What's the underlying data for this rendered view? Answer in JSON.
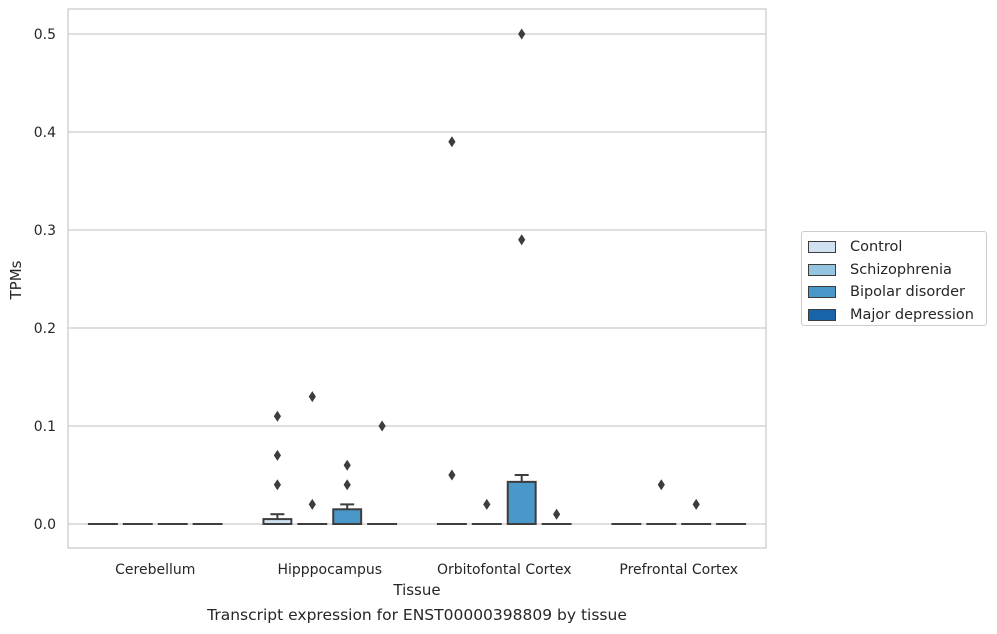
{
  "chart_data": {
    "type": "box",
    "title": "Transcript expression for ENST00000398809 by tissue",
    "xlabel": "Tissue",
    "ylabel": "TPMs",
    "ylim": [
      -0.025,
      0.525
    ],
    "yticks": [
      0.0,
      0.1,
      0.2,
      0.3,
      0.4,
      0.5
    ],
    "ytick_labels": [
      "0.0",
      "0.1",
      "0.2",
      "0.3",
      "0.4",
      "0.5"
    ],
    "grid": true,
    "legend_position": "right",
    "categories": [
      "Cerebellum",
      "Hipppocampus",
      "Orbitofontal Cortex",
      "Prefrontal Cortex"
    ],
    "series": [
      {
        "name": "Control",
        "color": "#d0e1f2",
        "boxes": [
          {
            "q1": 0,
            "median": 0,
            "q3": 0,
            "whisker_low": 0,
            "whisker_high": 0,
            "outliers": []
          },
          {
            "q1": 0,
            "median": 0,
            "q3": 0.005,
            "whisker_low": 0,
            "whisker_high": 0.01,
            "outliers": [
              0.11,
              0.07,
              0.04
            ]
          },
          {
            "q1": 0,
            "median": 0,
            "q3": 0,
            "whisker_low": 0,
            "whisker_high": 0,
            "outliers": [
              0.39,
              0.05
            ]
          },
          {
            "q1": 0,
            "median": 0,
            "q3": 0,
            "whisker_low": 0,
            "whisker_high": 0,
            "outliers": []
          }
        ]
      },
      {
        "name": "Schizophrenia",
        "color": "#94c4df",
        "boxes": [
          {
            "q1": 0,
            "median": 0,
            "q3": 0,
            "whisker_low": 0,
            "whisker_high": 0,
            "outliers": []
          },
          {
            "q1": 0,
            "median": 0,
            "q3": 0,
            "whisker_low": 0,
            "whisker_high": 0,
            "outliers": [
              0.13,
              0.02
            ]
          },
          {
            "q1": 0,
            "median": 0,
            "q3": 0,
            "whisker_low": 0,
            "whisker_high": 0,
            "outliers": [
              0.02
            ]
          },
          {
            "q1": 0,
            "median": 0,
            "q3": 0,
            "whisker_low": 0,
            "whisker_high": 0,
            "outliers": [
              0.04
            ]
          }
        ]
      },
      {
        "name": "Bipolar disorder",
        "color": "#4a98c9",
        "boxes": [
          {
            "q1": 0,
            "median": 0,
            "q3": 0,
            "whisker_low": 0,
            "whisker_high": 0,
            "outliers": []
          },
          {
            "q1": 0,
            "median": 0,
            "q3": 0.015,
            "whisker_low": 0,
            "whisker_high": 0.02,
            "outliers": [
              0.06,
              0.04
            ]
          },
          {
            "q1": 0,
            "median": 0,
            "q3": 0.043,
            "whisker_low": 0,
            "whisker_high": 0.05,
            "outliers": [
              0.5,
              0.29
            ]
          },
          {
            "q1": 0,
            "median": 0,
            "q3": 0,
            "whisker_low": 0,
            "whisker_high": 0,
            "outliers": [
              0.02
            ]
          }
        ]
      },
      {
        "name": "Major depression",
        "color": "#1764ab",
        "boxes": [
          {
            "q1": 0,
            "median": 0,
            "q3": 0,
            "whisker_low": 0,
            "whisker_high": 0,
            "outliers": []
          },
          {
            "q1": 0,
            "median": 0,
            "q3": 0,
            "whisker_low": 0,
            "whisker_high": 0,
            "outliers": [
              0.1
            ]
          },
          {
            "q1": 0,
            "median": 0,
            "q3": 0,
            "whisker_low": 0,
            "whisker_high": 0,
            "outliers": [
              0.01
            ]
          },
          {
            "q1": 0,
            "median": 0,
            "q3": 0,
            "whisker_low": 0,
            "whisker_high": 0,
            "outliers": []
          }
        ]
      }
    ]
  }
}
